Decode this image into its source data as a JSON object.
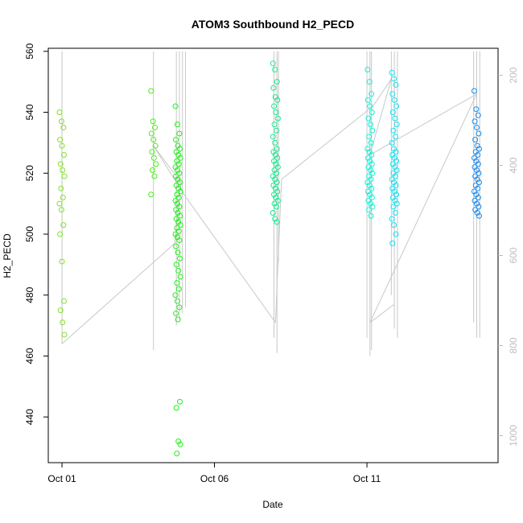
{
  "chart_data": {
    "type": "scatter",
    "title": "ATOM3 Southbound H2_PECD",
    "xlabel": "Date",
    "ylabel": "H2_PECD",
    "x_ticks": [
      "Oct 01",
      "Oct 06",
      "Oct 11"
    ],
    "x_tick_days": [
      1,
      6,
      11
    ],
    "xlim": [
      0.55,
      15.3
    ],
    "ylim": [
      425,
      561
    ],
    "y_ticks": [
      440,
      460,
      480,
      500,
      520,
      540,
      560
    ],
    "right_axis": {
      "ticks": [
        200,
        400,
        600,
        800,
        1000
      ],
      "lim": [
        1060,
        140
      ],
      "color": "#bdbdbd"
    },
    "grid": false,
    "legend": "none",
    "series": [
      {
        "color": "#7FE320",
        "day": 1.0,
        "values": [
          540,
          537,
          535,
          531,
          529,
          526,
          523,
          521,
          519,
          515,
          512,
          510,
          508,
          503,
          500,
          491,
          478,
          475,
          471,
          467
        ]
      },
      {
        "color": "#4CEB1C",
        "day": 4.0,
        "values": [
          547,
          537,
          535,
          533,
          531,
          529,
          527,
          525,
          523,
          521,
          519,
          513
        ]
      },
      {
        "color": "#1FF018",
        "day": 4.8,
        "values": [
          542,
          536,
          533,
          531,
          529,
          528,
          527,
          526,
          525,
          524,
          523,
          522,
          521,
          520,
          519,
          518,
          517,
          516,
          515,
          514,
          513,
          512,
          511,
          510,
          509,
          508,
          507,
          506,
          505,
          504,
          503,
          502,
          501,
          500,
          499,
          498,
          496,
          494,
          492,
          490,
          488,
          486,
          484,
          482,
          480,
          478,
          476,
          474,
          472,
          445,
          443,
          432,
          431,
          428
        ]
      },
      {
        "color": "#13EC8E",
        "day": 8.0,
        "values": [
          556,
          554,
          550,
          548,
          545,
          544,
          542,
          540,
          538,
          536,
          534,
          532,
          530,
          528,
          527,
          526,
          525,
          524,
          523,
          522,
          521,
          520,
          519,
          518,
          517,
          516,
          515,
          514,
          513,
          512,
          511,
          510,
          509,
          507,
          505,
          504
        ]
      },
      {
        "color": "#12F0D8",
        "day": 11.1,
        "values": [
          554,
          550,
          546,
          544,
          542,
          540,
          538,
          536,
          534,
          532,
          530,
          528,
          527,
          526,
          525,
          524,
          523,
          522,
          521,
          520,
          519,
          518,
          517,
          516,
          515,
          514,
          513,
          512,
          511,
          510,
          509,
          508,
          506
        ]
      },
      {
        "color": "#16E0F2",
        "day": 11.9,
        "values": [
          553,
          551,
          549,
          546,
          544,
          542,
          540,
          538,
          536,
          534,
          532,
          530,
          528,
          527,
          526,
          525,
          524,
          523,
          522,
          521,
          520,
          519,
          518,
          517,
          516,
          515,
          514,
          513,
          512,
          511,
          510,
          509,
          507,
          505,
          503,
          500,
          497
        ]
      },
      {
        "color": "#1A8CF0",
        "day": 14.6,
        "values": [
          547,
          541,
          539,
          537,
          535,
          533,
          531,
          529,
          528,
          527,
          526,
          525,
          524,
          523,
          522,
          521,
          520,
          519,
          518,
          517,
          516,
          515,
          514,
          513,
          512,
          511,
          510,
          509,
          508,
          507,
          506
        ]
      }
    ],
    "track": {
      "color": "#c8c8c8",
      "segments": [
        {
          "day": 1.0,
          "values": [
            464,
            560
          ]
        },
        {
          "day": 4.0,
          "values": [
            462,
            560
          ]
        },
        {
          "day": 4.75,
          "values": [
            470,
            560
          ]
        },
        {
          "day": 4.85,
          "values": [
            472,
            560
          ]
        },
        {
          "day": 4.95,
          "values": [
            474,
            560
          ]
        },
        {
          "day": 5.05,
          "values": [
            476,
            560
          ]
        },
        {
          "day": 7.95,
          "values": [
            466,
            560
          ]
        },
        {
          "day": 8.05,
          "values": [
            461,
            560
          ]
        },
        {
          "day": 8.1,
          "values": [
            491,
            560
          ]
        },
        {
          "day": 11.0,
          "values": [
            466,
            560
          ]
        },
        {
          "day": 11.1,
          "values": [
            460,
            560
          ]
        },
        {
          "day": 11.15,
          "values": [
            462,
            560
          ]
        },
        {
          "day": 11.8,
          "values": [
            480,
            560
          ]
        },
        {
          "day": 11.9,
          "values": [
            469,
            560
          ]
        },
        {
          "day": 12.0,
          "values": [
            466,
            560
          ]
        },
        {
          "day": 14.5,
          "values": [
            471,
            560
          ]
        },
        {
          "day": 14.6,
          "values": [
            466,
            560
          ]
        },
        {
          "day": 14.7,
          "values": [
            466,
            560
          ]
        }
      ],
      "path": [
        {
          "day": 1.0,
          "value": 464
        },
        {
          "day": 4.7,
          "value": 497
        },
        {
          "day": 4.9,
          "value": 517
        },
        {
          "day": 4.0,
          "value": 529
        },
        {
          "day": 5.0,
          "value": 513
        },
        {
          "day": 8.0,
          "value": 471
        },
        {
          "day": 8.2,
          "value": 518
        },
        {
          "day": 11.2,
          "value": 542
        },
        {
          "day": 11.8,
          "value": 551
        },
        {
          "day": 11.1,
          "value": 526
        },
        {
          "day": 14.6,
          "value": 546
        },
        {
          "day": 11.1,
          "value": 471
        },
        {
          "day": 11.9,
          "value": 477
        }
      ]
    }
  }
}
